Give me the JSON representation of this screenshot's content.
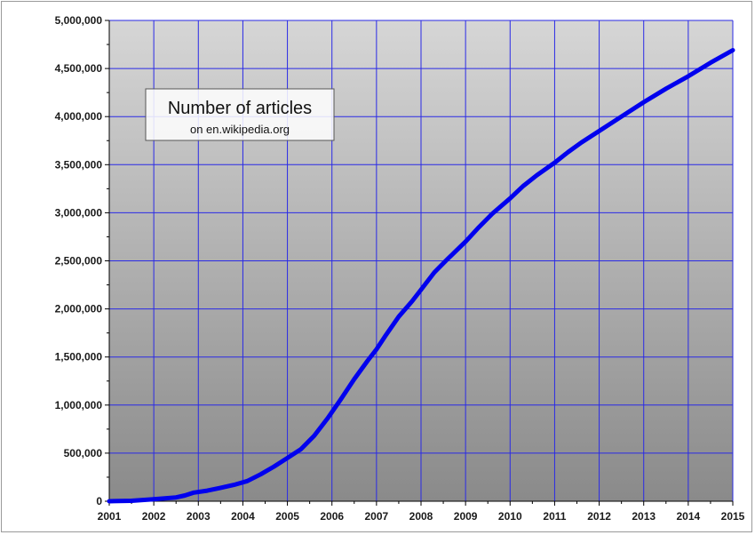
{
  "chart_data": {
    "type": "line",
    "title": "Number of articles",
    "subtitle": "on en.wikipedia.org",
    "xlabel": "",
    "ylabel": "",
    "xlim": [
      2001,
      2015
    ],
    "ylim": [
      0,
      5000000
    ],
    "x_ticks": [
      "2001",
      "2002",
      "2003",
      "2004",
      "2005",
      "2006",
      "2007",
      "2008",
      "2009",
      "2010",
      "2011",
      "2012",
      "2013",
      "2014",
      "2015"
    ],
    "y_ticks": [
      "0",
      "500,000",
      "1,000,000",
      "1,500,000",
      "2,000,000",
      "2,500,000",
      "3,000,000",
      "3,500,000",
      "4,000,000",
      "4,500,000",
      "5,000,000"
    ],
    "grid": true,
    "legend_position": "top-left",
    "colors": {
      "line": "#0000ee",
      "grid": "#2a2ae6",
      "bg_top": "#d6d6d6",
      "bg_bottom": "#8a8a8a"
    },
    "series": [
      {
        "x": [
          2001.0,
          2001.5,
          2002.0,
          2002.5,
          2002.7,
          2002.9,
          2003.2,
          2003.5,
          2003.8,
          2004.1,
          2004.4,
          2004.7,
          2005.0,
          2005.3,
          2005.6,
          2005.9,
          2006.2,
          2006.5,
          2006.8,
          2007.0,
          2007.2,
          2007.5,
          2007.8,
          2008.0,
          2008.3,
          2008.6,
          2009.0,
          2009.3,
          2009.6,
          2010.0,
          2010.3,
          2010.6,
          2011.0,
          2011.3,
          2011.6,
          2012.0,
          2012.5,
          2013.0,
          2013.5,
          2014.0,
          2014.5,
          2015.0
        ],
        "y": [
          0,
          5000,
          20000,
          40000,
          60000,
          90000,
          110000,
          140000,
          170000,
          210000,
          280000,
          360000,
          450000,
          540000,
          680000,
          860000,
          1060000,
          1270000,
          1460000,
          1580000,
          1720000,
          1920000,
          2080000,
          2200000,
          2380000,
          2520000,
          2700000,
          2850000,
          2990000,
          3150000,
          3280000,
          3390000,
          3520000,
          3630000,
          3730000,
          3850000,
          4000000,
          4150000,
          4290000,
          4420000,
          4560000,
          4690000
        ]
      }
    ]
  }
}
